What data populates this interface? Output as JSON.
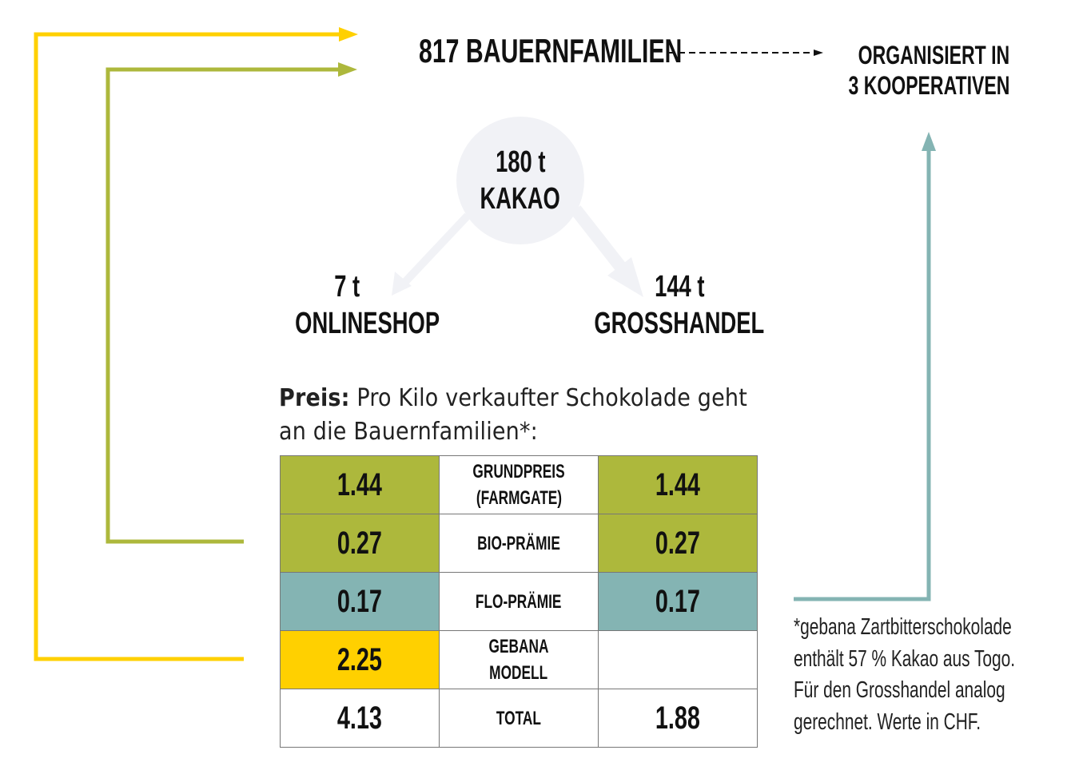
{
  "header": {
    "farmers": "817 BAUERNFAMILIEN",
    "org_line1": "ORGANISIERT IN",
    "org_line2": "3 KOOPERATIVEN"
  },
  "center": {
    "amount": "180 t",
    "label": "KAKAO"
  },
  "left": {
    "amount": "7 t",
    "label": "ONLINESHOP"
  },
  "right": {
    "amount": "144 t",
    "label": "GROSSHANDEL"
  },
  "intro": {
    "bold": "Preis:",
    "line1": " Pro Kilo verkaufter Schokolade geht",
    "line2": "an die Bauernfamilien*:"
  },
  "table": {
    "rows": [
      {
        "left": "1.44",
        "label1": "GRUNDPREIS",
        "label2": "(FARMGATE)",
        "right": "1.44"
      },
      {
        "left": "0.27",
        "label1": "BIO-PRÄMIE",
        "right": "0.27"
      },
      {
        "left": "0.17",
        "label1": "FLO-PRÄMIE",
        "right": "0.17"
      },
      {
        "left": "2.25",
        "label1": "GEBANA",
        "label2": "MODELL",
        "right": ""
      },
      {
        "left": "4.13",
        "label1": "TOTAL",
        "right": "1.88"
      }
    ]
  },
  "footnote": [
    "*gebana Zartbitterschokolade",
    "enthält 57 % Kakao aus Togo.",
    "Für den Grosshandel analog",
    "gerechnet. Werte in CHF."
  ],
  "colors": {
    "green": "#adb83c",
    "teal": "#84b4b3",
    "yellow": "#ffd000",
    "circle": "#f1f2f6"
  }
}
